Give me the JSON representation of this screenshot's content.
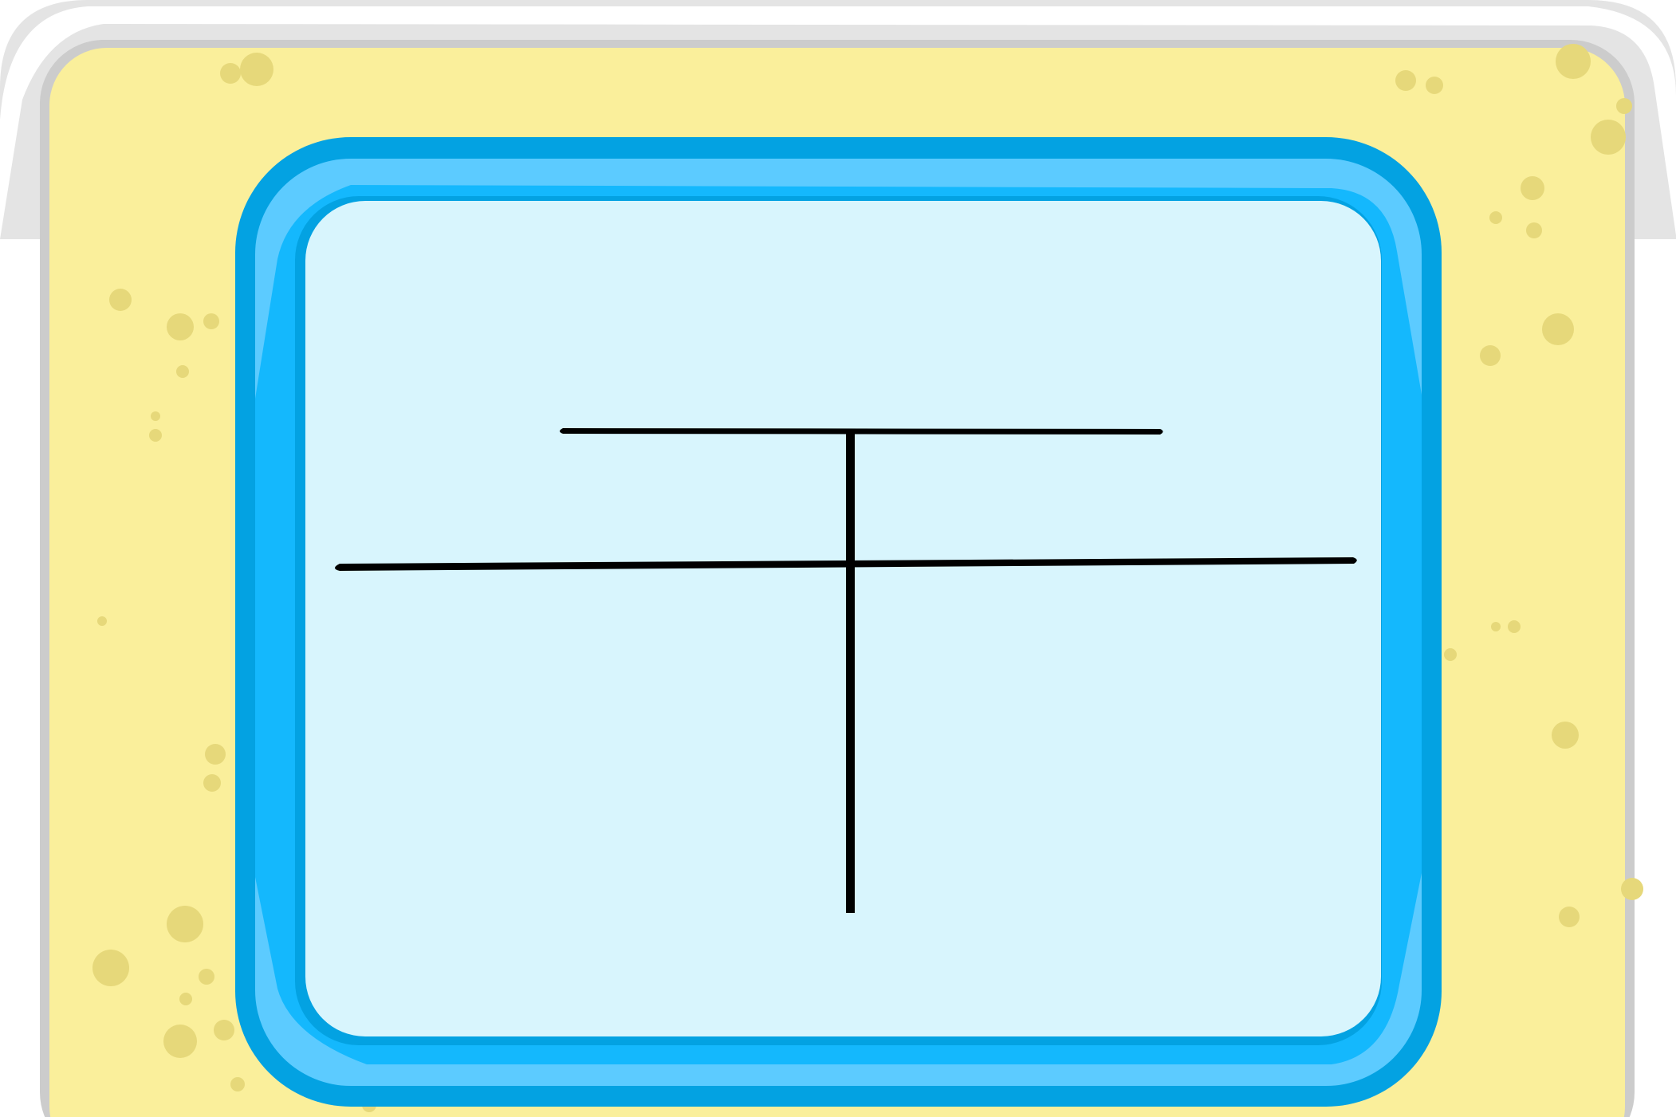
{
  "game": {
    "character": "干",
    "board": {
      "frame_color": "#e4e4e4",
      "frame_edge_color": "#cccccc",
      "sand_color": "#faef9b",
      "sand_dot_color": "#e6d87a"
    },
    "card": {
      "outer_color": "#03a2e2",
      "bevel_color": "#5ccbff",
      "mid_color": "#14b8fd",
      "face_color": "#d8f5fd",
      "stroke_color": "#000000"
    }
  }
}
